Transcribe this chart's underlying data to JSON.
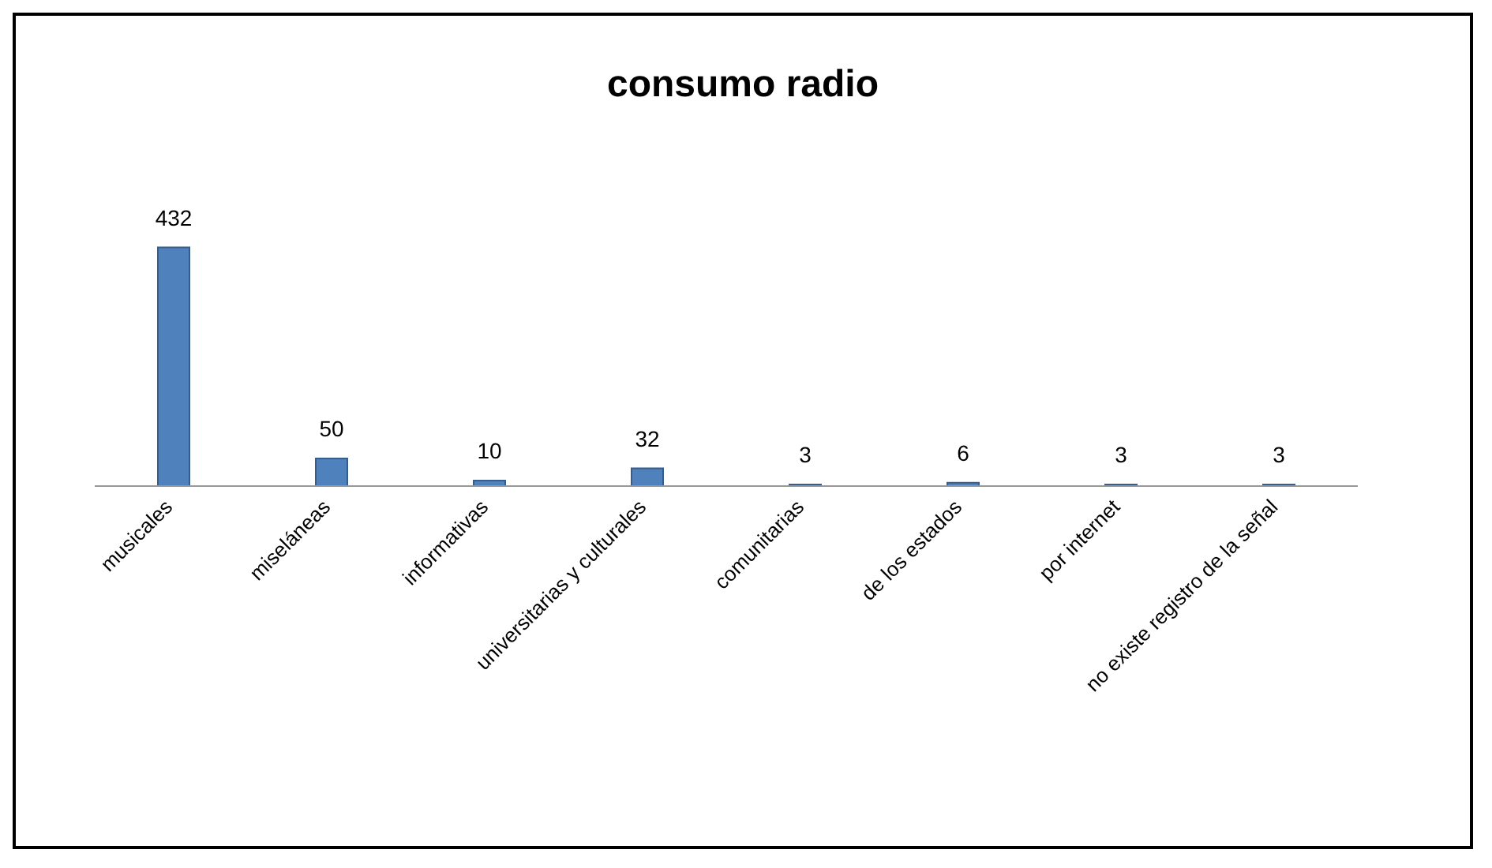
{
  "chart_data": {
    "type": "bar",
    "title": "consumo radio",
    "categories": [
      "musicales",
      "miseláneas",
      "informativas",
      "universitarias y culturales",
      "comunitarias",
      "de los estados",
      "por internet",
      "no existe registro de la señal"
    ],
    "values": [
      432,
      50,
      10,
      32,
      3,
      6,
      3,
      3
    ],
    "color": "#4f81bd",
    "data_labels": true,
    "grid": false,
    "legend": false
  }
}
